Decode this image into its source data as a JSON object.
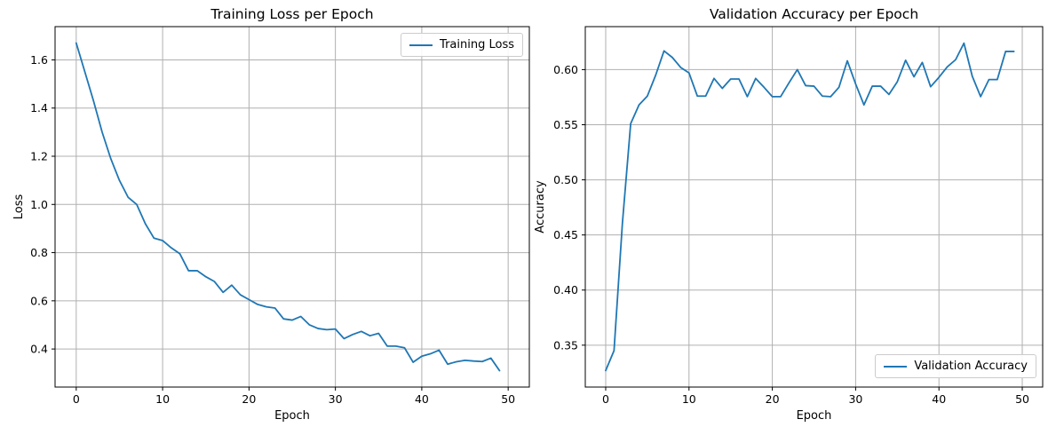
{
  "figure": {
    "background": "#ffffff",
    "line_color": "#1f77b4",
    "grid_color": "#b0b0b0"
  },
  "chart_data": [
    {
      "type": "line",
      "title": "Training Loss per Epoch",
      "xlabel": "Epoch",
      "ylabel": "Loss",
      "legend": {
        "label": "Training Loss",
        "position": "top-right"
      },
      "line_color": "#1f77b4",
      "grid": true,
      "grid_color": "#b0b0b0",
      "xlim": [
        -2.45,
        52.45
      ],
      "ylim": [
        0.242,
        1.738
      ],
      "xticks": [
        0,
        10,
        20,
        30,
        40,
        50
      ],
      "xtick_labels": [
        "0",
        "10",
        "20",
        "30",
        "40",
        "50"
      ],
      "yticks": [
        0.4,
        0.6,
        0.8,
        1.0,
        1.2,
        1.4,
        1.6
      ],
      "ytick_labels": [
        "0.4",
        "0.6",
        "0.8",
        "1.0",
        "1.2",
        "1.4",
        "1.6"
      ],
      "x": [
        0,
        1,
        2,
        3,
        4,
        5,
        6,
        7,
        8,
        9,
        10,
        11,
        12,
        13,
        14,
        15,
        16,
        17,
        18,
        19,
        20,
        21,
        22,
        23,
        24,
        25,
        26,
        27,
        28,
        29,
        30,
        31,
        32,
        33,
        34,
        35,
        36,
        37,
        38,
        39,
        40,
        41,
        42,
        43,
        44,
        45,
        46,
        47,
        48,
        49
      ],
      "values": [
        1.67,
        1.55,
        1.43,
        1.3,
        1.19,
        1.1,
        1.03,
        1.0,
        0.92,
        0.86,
        0.85,
        0.82,
        0.795,
        0.725,
        0.725,
        0.7,
        0.68,
        0.635,
        0.665,
        0.625,
        0.605,
        0.585,
        0.575,
        0.57,
        0.525,
        0.52,
        0.535,
        0.5,
        0.485,
        0.48,
        0.483,
        0.443,
        0.46,
        0.473,
        0.455,
        0.465,
        0.412,
        0.412,
        0.405,
        0.345,
        0.37,
        0.38,
        0.395,
        0.337,
        0.347,
        0.353,
        0.35,
        0.348,
        0.362,
        0.31
      ]
    },
    {
      "type": "line",
      "title": "Validation Accuracy per Epoch",
      "xlabel": "Epoch",
      "ylabel": "Accuracy",
      "legend": {
        "label": "Validation Accuracy",
        "position": "bottom-right"
      },
      "line_color": "#1f77b4",
      "grid": true,
      "grid_color": "#b0b0b0",
      "xlim": [
        -2.45,
        52.45
      ],
      "ylim": [
        0.312,
        0.639
      ],
      "xticks": [
        0,
        10,
        20,
        30,
        40,
        50
      ],
      "xtick_labels": [
        "0",
        "10",
        "20",
        "30",
        "40",
        "50"
      ],
      "yticks": [
        0.35,
        0.4,
        0.45,
        0.5,
        0.55,
        0.6
      ],
      "ytick_labels": [
        "0.35",
        "0.40",
        "0.45",
        "0.50",
        "0.55",
        "0.60"
      ],
      "x": [
        0,
        1,
        2,
        3,
        4,
        5,
        6,
        7,
        8,
        9,
        10,
        11,
        12,
        13,
        14,
        15,
        16,
        17,
        18,
        19,
        20,
        21,
        22,
        23,
        24,
        25,
        26,
        27,
        28,
        29,
        30,
        31,
        32,
        33,
        34,
        35,
        36,
        37,
        38,
        39,
        40,
        41,
        42,
        43,
        44,
        45,
        46,
        47,
        48,
        49
      ],
      "values": [
        0.327,
        0.345,
        0.46,
        0.551,
        0.568,
        0.576,
        0.595,
        0.617,
        0.611,
        0.602,
        0.597,
        0.576,
        0.576,
        0.592,
        0.583,
        0.5915,
        0.5915,
        0.5755,
        0.592,
        0.584,
        0.5755,
        0.5755,
        0.588,
        0.6,
        0.5855,
        0.585,
        0.576,
        0.5755,
        0.584,
        0.608,
        0.587,
        0.568,
        0.585,
        0.585,
        0.5775,
        0.589,
        0.6085,
        0.5935,
        0.6065,
        0.5845,
        0.593,
        0.6025,
        0.609,
        0.624,
        0.594,
        0.5755,
        0.591,
        0.591,
        0.6165,
        0.6165
      ]
    }
  ]
}
